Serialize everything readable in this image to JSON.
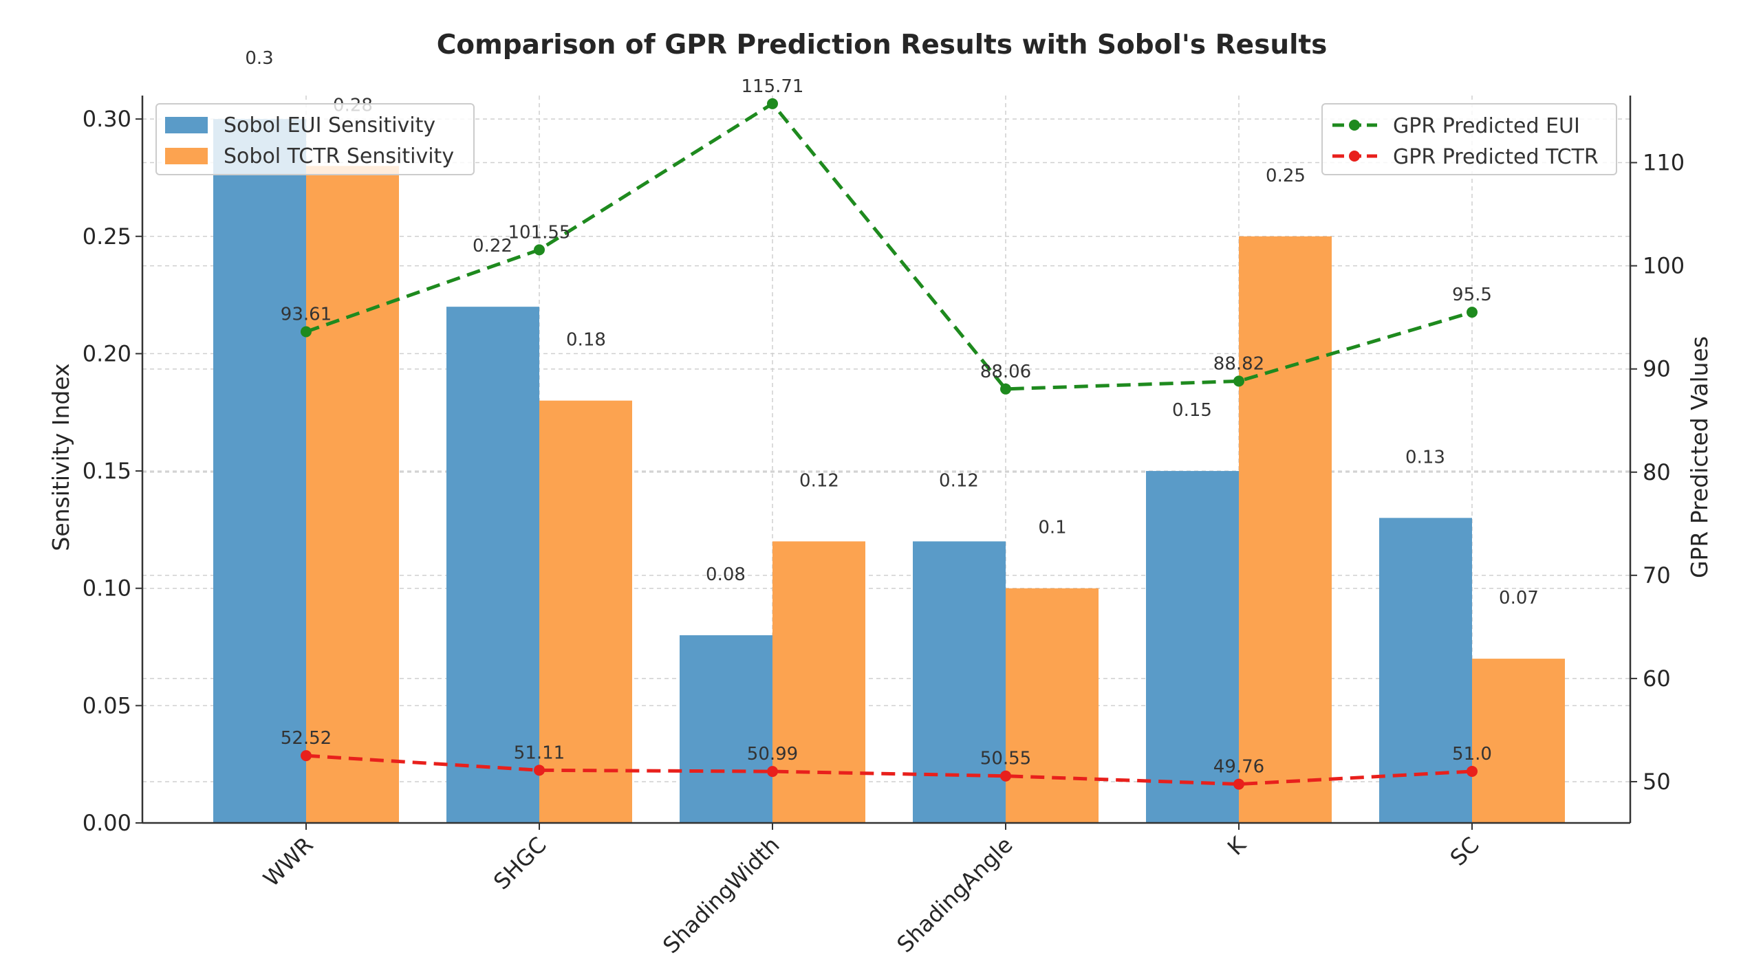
{
  "chart_data": {
    "type": "bar",
    "title": "Comparison of GPR Prediction Results with Sobol's Results",
    "categories": [
      "WWR",
      "SHGC",
      "ShadingWidth",
      "ShadingAngle",
      "K",
      "SC"
    ],
    "series": [
      {
        "name": "Sobol EUI Sensitivity",
        "type": "bar",
        "axis": "left",
        "color": "#5a9bc8",
        "values": [
          0.3,
          0.22,
          0.08,
          0.12,
          0.15,
          0.13
        ],
        "labels": [
          "0.3",
          "0.22",
          "0.08",
          "0.12",
          "0.15",
          "0.13"
        ]
      },
      {
        "name": "Sobol TCTR Sensitivity",
        "type": "bar",
        "axis": "left",
        "color": "#fca350",
        "values": [
          0.28,
          0.18,
          0.12,
          0.1,
          0.25,
          0.07
        ],
        "labels": [
          "0.28",
          "0.18",
          "0.12",
          "0.1",
          "0.25",
          "0.07"
        ]
      },
      {
        "name": "GPR Predicted EUI",
        "type": "line",
        "axis": "right",
        "color": "#1e8a1e",
        "values": [
          93.61,
          101.55,
          115.71,
          88.06,
          88.82,
          95.5
        ],
        "labels": [
          "93.61",
          "101.55",
          "115.71",
          "88.06",
          "88.82",
          "95.5"
        ]
      },
      {
        "name": "GPR Predicted TCTR",
        "type": "line",
        "axis": "right",
        "color": "#e8201c",
        "values": [
          52.52,
          51.11,
          50.99,
          50.55,
          49.76,
          51.0
        ],
        "labels": [
          "52.52",
          "51.11",
          "50.99",
          "50.55",
          "49.76",
          "51.0"
        ]
      }
    ],
    "ylabel": "Sensitivity Index",
    "ylim": [
      0,
      0.31
    ],
    "yticks": [
      "0.00",
      "0.05",
      "0.10",
      "0.15",
      "0.20",
      "0.25",
      "0.30"
    ],
    "y2label": "GPR Predicted Values",
    "y2lim": [
      46,
      116.5
    ],
    "y2ticks": [
      "50",
      "60",
      "70",
      "80",
      "90",
      "100",
      "110"
    ],
    "grid": true,
    "legend_left": "top-left",
    "legend_right": "top-right"
  }
}
